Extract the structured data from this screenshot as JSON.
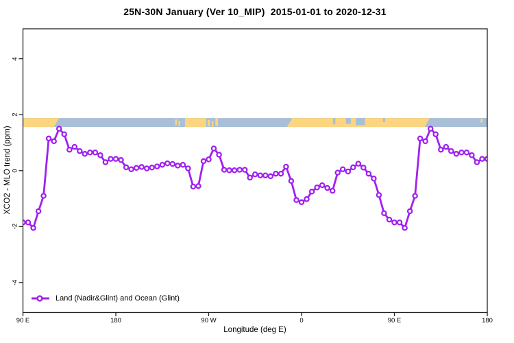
{
  "page": {
    "background": "#ffffff"
  },
  "chart_data": {
    "type": "line",
    "title": "25N-30N January (Ver 10_MIP)  2015-01-01 to 2020-12-31",
    "xlabel": "Longitude (deg E)",
    "ylabel": "XCO2 - MLO trend (ppm)",
    "grid": false,
    "x_axis": {
      "range_deg_from_90E": [
        0,
        450
      ],
      "ticks": [
        {
          "pos": 0,
          "label": "90 E"
        },
        {
          "pos": 90,
          "label": "180"
        },
        {
          "pos": 180,
          "label": "90 W"
        },
        {
          "pos": 270,
          "label": "0"
        },
        {
          "pos": 360,
          "label": "90 E"
        },
        {
          "pos": 450,
          "label": "180"
        }
      ]
    },
    "y_axis": {
      "range": [
        -5.07,
        5.07
      ],
      "ticks": [
        {
          "value": -4,
          "label": "-4"
        },
        {
          "value": -2,
          "label": "-2"
        },
        {
          "value": 0,
          "label": "0"
        },
        {
          "value": 2,
          "label": "2"
        },
        {
          "value": 4,
          "label": "4"
        }
      ]
    },
    "legend": {
      "position": "bottom-left",
      "label": "Land (Nadir&Glint) and Ocean (Glint)"
    },
    "series": [
      {
        "name": "Land (Nadir&Glint) and Ocean (Glint)",
        "color": "#A020F0",
        "marker": "open-circle",
        "x_start_deg": 0,
        "x_step_deg": 5,
        "values": [
          -1.85,
          -1.85,
          -2.05,
          -1.45,
          -0.9,
          1.15,
          1.05,
          1.5,
          1.3,
          0.75,
          0.85,
          0.7,
          0.6,
          0.65,
          0.65,
          0.55,
          0.3,
          0.42,
          0.42,
          0.38,
          0.12,
          0.05,
          0.1,
          0.13,
          0.08,
          0.11,
          0.15,
          0.21,
          0.26,
          0.24,
          0.18,
          0.21,
          0.08,
          -0.57,
          -0.55,
          0.34,
          0.4,
          0.79,
          0.57,
          0.03,
          0.01,
          0.01,
          0.03,
          0.03,
          -0.25,
          -0.13,
          -0.17,
          -0.17,
          -0.2,
          -0.11,
          -0.11,
          0.14,
          -0.37,
          -1.05,
          -1.13,
          -1.02,
          -0.75,
          -0.6,
          -0.52,
          -0.62,
          -0.72,
          -0.07,
          0.05,
          -0.03,
          0.12,
          0.25,
          0.11,
          -0.11,
          -0.28,
          -0.87,
          -1.52,
          -1.75,
          -1.85,
          -1.85,
          -2.05,
          -1.45,
          -0.9,
          1.15,
          1.05,
          1.5,
          1.3,
          0.75,
          0.85,
          0.7,
          0.6,
          0.65,
          0.65,
          0.55,
          0.3,
          0.42,
          0.42
        ]
      }
    ],
    "map_band": {
      "description": "land/ocean strip for 25N-30N latitude drawn across plot",
      "ocean_color": "#a9bfd8",
      "land_color": "#fcd581",
      "y_range_ppm": [
        1.56,
        1.88
      ],
      "land_segments": [
        {
          "from": 0,
          "to": 35,
          "top": 0,
          "bottom": 1,
          "slant_r": 5
        },
        {
          "from": 147.5,
          "to": 149.3,
          "top": 0.15,
          "bottom": 0.75
        },
        {
          "from": 150.8,
          "to": 152.3,
          "top": 0.3,
          "bottom": 0.9
        },
        {
          "from": 157,
          "to": 177.5,
          "top": 0,
          "bottom": 1
        },
        {
          "from": 179,
          "to": 181,
          "top": 0.2,
          "bottom": 0.9
        },
        {
          "from": 183,
          "to": 184.5,
          "top": 0.3,
          "bottom": 1
        },
        {
          "from": 186.5,
          "to": 189,
          "top": 0,
          "bottom": 0.85
        },
        {
          "from": 256,
          "to": 394,
          "top": 0,
          "bottom": 1,
          "slant_l": 5,
          "slant_r": 4.5
        },
        {
          "from": 443.5,
          "to": 445.2,
          "top": 0.1,
          "bottom": 0.5
        }
      ],
      "ocean_notches": [
        {
          "from": 300.5,
          "to": 302.8,
          "top": 0,
          "bottom": 0.7
        },
        {
          "from": 313,
          "to": 317.8,
          "top": 0,
          "bottom": 0.65
        },
        {
          "from": 322.5,
          "to": 331.5,
          "top": 0,
          "bottom": 0.8
        },
        {
          "from": 348.8,
          "to": 351,
          "top": 0,
          "bottom": 0.45
        }
      ]
    },
    "colors": {
      "axis": "#222222",
      "text": "#000000",
      "series_purple": "#A020F0",
      "land_tan": "#fcd581",
      "ocean_blue": "#a9bfd8"
    }
  }
}
